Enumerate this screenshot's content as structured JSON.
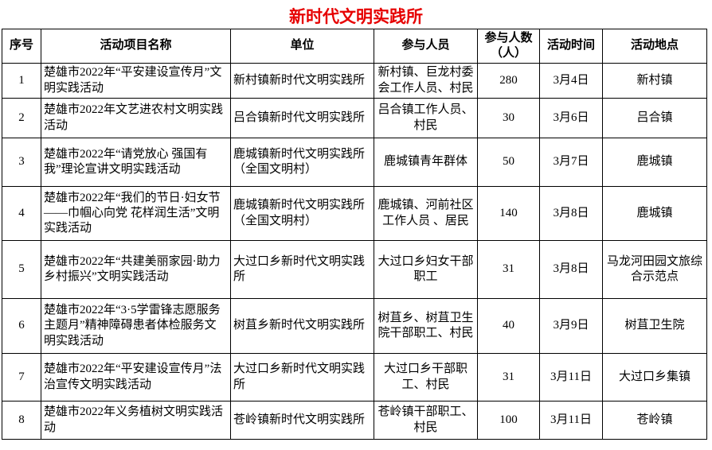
{
  "page": {
    "title": "新时代文明实践所",
    "title_color": "#e60000",
    "text_color": "#000000",
    "border_color": "#000000",
    "background_color": "#ffffff"
  },
  "table": {
    "headers": [
      "序号",
      "活动项目名称",
      "单位",
      "参与人员",
      "参与人数（人）",
      "活动时间",
      "活动地点"
    ],
    "rows": [
      [
        "1",
        "楚雄市2022年“平安建设宣传月”文明实践活动",
        "新村镇新时代文明实践所",
        "新村镇、巨龙村委会工作人员、村民",
        "280",
        "3月4日",
        "新村镇"
      ],
      [
        "2",
        "楚雄市2022年文艺进农村文明实践活动",
        "吕合镇新时代文明实践所",
        "吕合镇工作人员、村民",
        "30",
        "3月6日",
        "吕合镇"
      ],
      [
        "3",
        "楚雄市2022年“请党放心 强国有我”理论宣讲文明实践活动",
        "鹿城镇新时代文明实践所（全国文明村）",
        "鹿城镇青年群体",
        "50",
        "3月7日",
        "鹿城镇"
      ],
      [
        "4",
        "楚雄市2022年“我们的节日·妇女节——巾帼心向党 花样润生活”文明实践活动",
        "鹿城镇新时代文明实践所（全国文明村）",
        "鹿城镇、河前社区工作人员 、居民",
        "140",
        "3月8日",
        "鹿城镇"
      ],
      [
        "5",
        "楚雄市2022年“共建美丽家园·助力乡村振兴”文明实践活动",
        "大过口乡新时代文明实践所",
        "大过口乡妇女干部职工",
        "31",
        "3月8日",
        "马龙河田园文旅综合示范点"
      ],
      [
        "6",
        "楚雄市2022年“3·5学雷锋志愿服务主题月”精神障碍患者体检服务文明实践活动",
        "树苴乡新时代文明实践所",
        "树苴乡、树苴卫生院干部职工、村民",
        "40",
        "3月9日",
        "树苴卫生院"
      ],
      [
        "7",
        "楚雄市2022年“平安建设宣传月”法治宣传文明实践活动",
        "大过口乡新时代文明实践所",
        "大过口乡干部职工、村民",
        "31",
        "3月11日",
        "大过口乡集镇"
      ],
      [
        "8",
        "楚雄市2022年义务植树文明实践活动",
        "苍岭镇新时代文明实践所",
        "苍岭镇干部职工、村民",
        "100",
        "3月11日",
        "苍岭镇"
      ]
    ]
  }
}
